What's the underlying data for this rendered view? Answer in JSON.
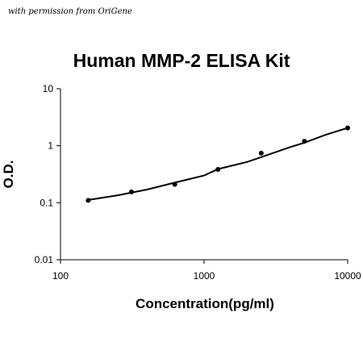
{
  "credit": "with permission from OriGene",
  "chart_data": {
    "type": "scatter",
    "title": "Human MMP-2 ELISA Kit",
    "xlabel": "Concentration(pg/ml)",
    "ylabel": "O.D.",
    "x_scale": "log",
    "y_scale": "log",
    "xlim": [
      100,
      10000
    ],
    "ylim": [
      0.01,
      10
    ],
    "x_ticks": [
      "100",
      "1000",
      "10000"
    ],
    "y_ticks": [
      "10",
      "1",
      "0.1",
      "0.01"
    ],
    "grid": false,
    "series": [
      {
        "x": [
          156,
          312,
          625,
          1250,
          2500,
          5000,
          10000
        ],
        "y": [
          0.11,
          0.155,
          0.21,
          0.385,
          0.74,
          1.2,
          2.05
        ]
      }
    ],
    "fit_curve": {
      "x": [
        156,
        250,
        400,
        625,
        1000,
        1250,
        2000,
        2500,
        4000,
        5000,
        7000,
        10000
      ],
      "y": [
        0.112,
        0.135,
        0.17,
        0.225,
        0.3,
        0.39,
        0.52,
        0.63,
        0.95,
        1.13,
        1.55,
        2.05
      ]
    }
  }
}
